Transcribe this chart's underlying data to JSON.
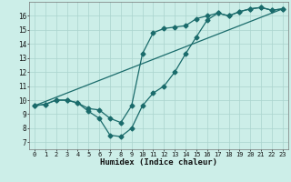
{
  "xlabel": "Humidex (Indice chaleur)",
  "ylabel": "",
  "bg_color": "#cceee8",
  "line_color": "#1a6b6b",
  "grid_color": "#aad4ce",
  "xlim": [
    -0.5,
    23.5
  ],
  "ylim": [
    6.5,
    17.0
  ],
  "xticks": [
    0,
    1,
    2,
    3,
    4,
    5,
    6,
    7,
    8,
    9,
    10,
    11,
    12,
    13,
    14,
    15,
    16,
    17,
    18,
    19,
    20,
    21,
    22,
    23
  ],
  "yticks": [
    7,
    8,
    9,
    10,
    11,
    12,
    13,
    14,
    15,
    16
  ],
  "line1_x": [
    0,
    1,
    2,
    3,
    4,
    5,
    6,
    7,
    8,
    9,
    10,
    11,
    12,
    13,
    14,
    15,
    16,
    17,
    18,
    19,
    20,
    21,
    22,
    23
  ],
  "line1_y": [
    9.6,
    9.7,
    10.0,
    10.0,
    9.8,
    9.2,
    8.7,
    7.5,
    7.4,
    8.0,
    9.6,
    10.5,
    11.0,
    12.0,
    13.3,
    14.5,
    15.7,
    16.2,
    16.0,
    16.3,
    16.5,
    16.6,
    16.4,
    16.5
  ],
  "line2_x": [
    0,
    1,
    2,
    3,
    4,
    5,
    6,
    7,
    8,
    9,
    10,
    11,
    12,
    13,
    14,
    15,
    16,
    17,
    18,
    19,
    20,
    21,
    22,
    23
  ],
  "line2_y": [
    9.6,
    9.7,
    10.0,
    10.0,
    9.8,
    9.4,
    9.3,
    8.7,
    8.4,
    9.6,
    13.3,
    14.8,
    15.1,
    15.2,
    15.3,
    15.8,
    16.0,
    16.2,
    16.0,
    16.3,
    16.5,
    16.6,
    16.4,
    16.5
  ],
  "line3_x": [
    0,
    23
  ],
  "line3_y": [
    9.6,
    16.5
  ],
  "markersize": 2.5,
  "linewidth": 0.9,
  "tick_fontsize": 5.0,
  "xlabel_fontsize": 6.5
}
